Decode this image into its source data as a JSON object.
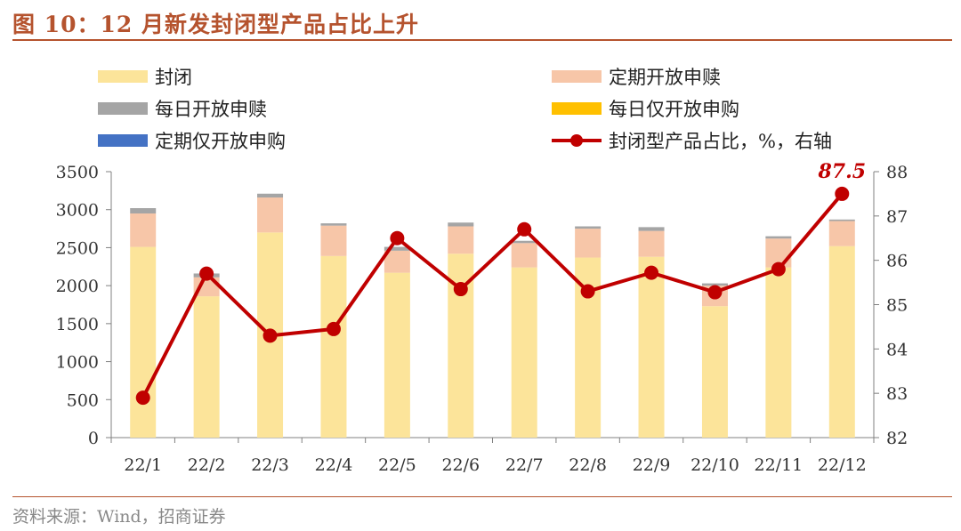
{
  "header": {
    "title": "图 10：12 月新发封闭型产品占比上升"
  },
  "footer": {
    "source": "资料来源：Wind，招商证券"
  },
  "chart_data": {
    "type": "bar",
    "title": "图 10：12 月新发封闭型产品占比上升",
    "categories": [
      "22/1",
      "22/2",
      "22/3",
      "22/4",
      "22/5",
      "22/6",
      "22/7",
      "22/8",
      "22/9",
      "22/10",
      "22/11",
      "22/12"
    ],
    "series": [
      {
        "name": "封闭",
        "type": "bar",
        "axis": "left",
        "color": "#FCE49A",
        "values": [
          2510,
          1860,
          2700,
          2390,
          2170,
          2420,
          2240,
          2370,
          2380,
          1730,
          2240,
          2520
        ]
      },
      {
        "name": "定期开放申赎",
        "type": "bar",
        "axis": "left",
        "color": "#F7C6A8",
        "values": [
          440,
          250,
          460,
          400,
          290,
          360,
          320,
          380,
          340,
          270,
          380,
          330
        ]
      },
      {
        "name": "每日开放申赎",
        "type": "bar",
        "axis": "left",
        "color": "#A5A5A5",
        "values": [
          70,
          50,
          50,
          30,
          50,
          50,
          30,
          30,
          50,
          30,
          30,
          20
        ]
      },
      {
        "name": "每日仅开放申购",
        "type": "bar",
        "axis": "left",
        "color": "#FFC000",
        "values": [
          0,
          0,
          0,
          0,
          0,
          0,
          0,
          0,
          0,
          0,
          0,
          0
        ]
      },
      {
        "name": "定期仅开放申购",
        "type": "bar",
        "axis": "left",
        "color": "#4472C4",
        "values": [
          0,
          0,
          0,
          0,
          0,
          0,
          0,
          0,
          0,
          0,
          0,
          0
        ]
      },
      {
        "name": "封闭型产品占比，%，右轴",
        "type": "line",
        "axis": "right",
        "color": "#C00000",
        "values": [
          82.9,
          85.7,
          84.3,
          84.45,
          86.5,
          85.35,
          86.7,
          85.3,
          85.72,
          85.28,
          85.8,
          87.5
        ]
      }
    ],
    "ylim_left": [
      0,
      3500
    ],
    "yticks_left": [
      0,
      500,
      1000,
      1500,
      2000,
      2500,
      3000,
      3500
    ],
    "ylim_right": [
      82,
      88
    ],
    "yticks_right": [
      82,
      83,
      84,
      85,
      86,
      87,
      88
    ],
    "annotation": {
      "label": "87.5",
      "category": "22/12"
    },
    "legend_position": "top",
    "grid": false
  }
}
